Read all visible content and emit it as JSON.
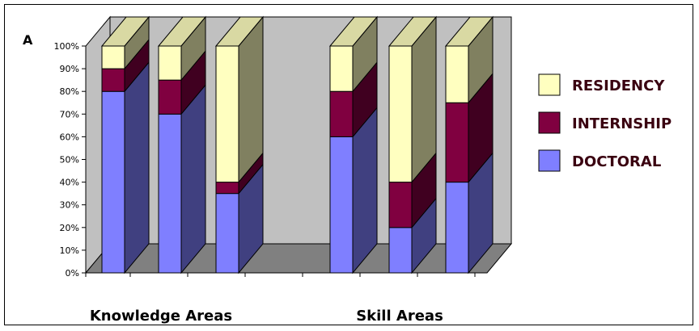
{
  "panel_label": "A",
  "chart_data": {
    "type": "bar",
    "stacked": true,
    "percent": true,
    "three_d": true,
    "ylim": [
      0,
      100
    ],
    "yticks": [
      "0%",
      "10%",
      "20%",
      "30%",
      "40%",
      "50%",
      "60%",
      "70%",
      "80%",
      "90%",
      "100%"
    ],
    "groups": [
      {
        "label": "Knowledge Areas",
        "bar_count": 3
      },
      {
        "label": "Skill Areas",
        "bar_count": 3
      }
    ],
    "series": [
      {
        "name": "DOCTORAL",
        "color": "#7f7fff",
        "values": [
          80,
          70,
          35,
          60,
          20,
          40
        ]
      },
      {
        "name": "INTERNSHIP",
        "color": "#800040",
        "values": [
          10,
          15,
          5,
          20,
          20,
          35
        ]
      },
      {
        "name": "RESIDENCY",
        "color": "#ffffc0",
        "values": [
          10,
          15,
          60,
          20,
          60,
          25
        ]
      }
    ],
    "legend_order": [
      "RESIDENCY",
      "INTERNSHIP",
      "DOCTORAL"
    ],
    "legend_position": "right",
    "grid": false
  }
}
